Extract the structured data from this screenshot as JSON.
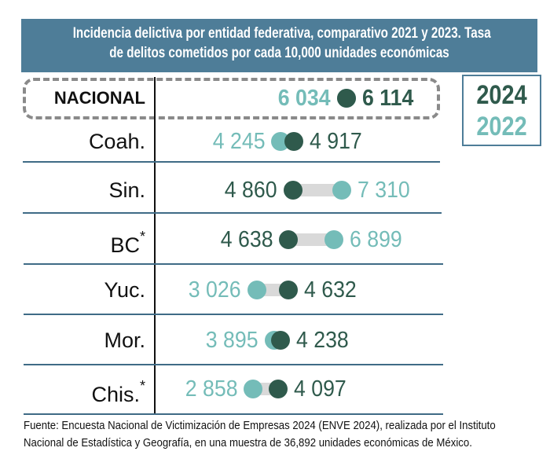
{
  "title": [
    "Incidencia delictiva por entidad federativa, comparativo 2021 y 2023. Tasa",
    "de delitos cometidos por cada 10,000 unidades económicas"
  ],
  "legend": {
    "year_dark": "2024",
    "year_light": "2022"
  },
  "colors": {
    "dark": "#2f5a4c",
    "light": "#74bcb8",
    "header": "#4e7d98",
    "bar": "#d9d9d9"
  },
  "footer": [
    "Fuente: Encuesta Nacional de Victimización de Empresas 2024 (ENVE 2024), realizada por el Instituto",
    "Nacional de Estadística y Geografía, en una muestra de 36,892 unidades económicas de México."
  ],
  "chart_data": {
    "type": "dumbbell",
    "series": [
      {
        "name": "2024",
        "color": "#2f5a4c"
      },
      {
        "name": "2022",
        "color": "#74bcb8"
      }
    ],
    "categories": [
      "NACIONAL",
      "Coah.",
      "Sin.",
      "BC*",
      "Yuc.",
      "Mor.",
      "Chis.*"
    ],
    "rows": [
      {
        "label": "NACIONAL",
        "asterisk": false,
        "v2024": 6114,
        "v2022": 6034,
        "text2024": "6 114",
        "text2022": "6 034"
      },
      {
        "label": "Coah.",
        "asterisk": false,
        "v2024": 4917,
        "v2022": 4245,
        "text2024": "4 917",
        "text2022": "4 245"
      },
      {
        "label": "Sin.",
        "asterisk": false,
        "v2024": 4860,
        "v2022": 7310,
        "text2024": "4 860",
        "text2022": "7 310"
      },
      {
        "label": "BC",
        "asterisk": true,
        "v2024": 4638,
        "v2022": 6899,
        "text2024": "4 638",
        "text2022": "6 899"
      },
      {
        "label": "Yuc.",
        "asterisk": false,
        "v2024": 4632,
        "v2022": 3026,
        "text2024": "4 632",
        "text2022": "3 026"
      },
      {
        "label": "Mor.",
        "asterisk": false,
        "v2024": 4238,
        "v2022": 3895,
        "text2024": "4 238",
        "text2022": "3 895"
      },
      {
        "label": "Chis.",
        "asterisk": true,
        "v2024": 4097,
        "v2022": 2858,
        "text2024": "4 097",
        "text2022": "2 858"
      }
    ]
  }
}
